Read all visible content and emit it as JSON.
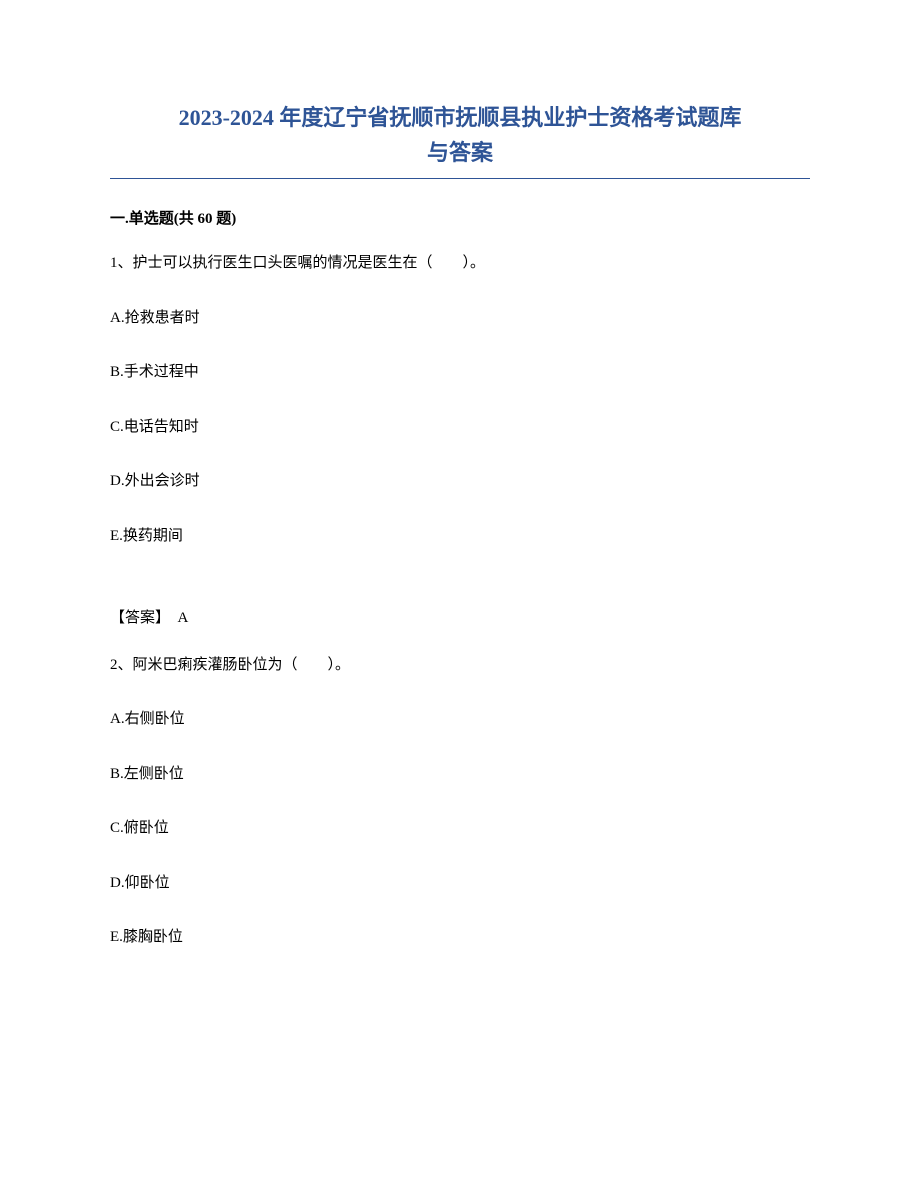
{
  "title": {
    "line1": "2023-2024 年度辽宁省抚顺市抚顺县执业护士资格考试题库",
    "line2": "与答案",
    "color": "#2e5496",
    "fontsize": 22
  },
  "section_header": "一.单选题(共 60 题)",
  "questions": [
    {
      "number": "1、",
      "text": "护士可以执行医生口头医嘱的情况是医生在（　　）。",
      "options": [
        {
          "label": "A.",
          "text": "抢救患者时"
        },
        {
          "label": "B.",
          "text": "手术过程中"
        },
        {
          "label": "C.",
          "text": "电话告知时"
        },
        {
          "label": "D.",
          "text": "外出会诊时"
        },
        {
          "label": "E.",
          "text": "换药期间"
        }
      ],
      "answer_label": "【答案】",
      "answer_value": "A"
    },
    {
      "number": "2、",
      "text": "阿米巴痢疾灌肠卧位为（　　）。",
      "options": [
        {
          "label": "A.",
          "text": "右侧卧位"
        },
        {
          "label": "B.",
          "text": "左侧卧位"
        },
        {
          "label": "C.",
          "text": "俯卧位"
        },
        {
          "label": "D.",
          "text": "仰卧位"
        },
        {
          "label": "E.",
          "text": "膝胸卧位"
        }
      ]
    }
  ],
  "colors": {
    "title": "#2e5496",
    "underline": "#2e5496",
    "text": "#000000",
    "background": "#ffffff"
  },
  "typography": {
    "title_fontsize": 22,
    "body_fontsize": 15,
    "title_weight": "bold",
    "section_weight": "bold"
  }
}
